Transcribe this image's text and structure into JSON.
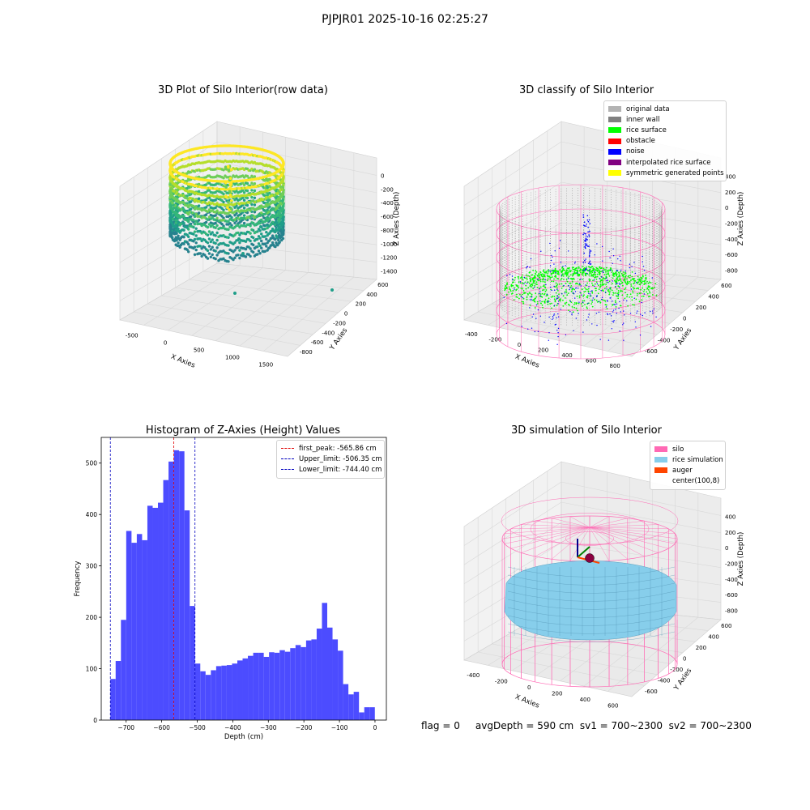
{
  "figure": {
    "suptitle": "PJPJR01 2025-10-16 02:25:27",
    "footer": "flag = 0     avgDepth = 590 cm  sv1 = 700~2300  sv2 = 700~2300"
  },
  "colors": {
    "histogram_bar": "#4c4cff",
    "first_peak_line": "#e00000",
    "limit_line": "#0000c0",
    "silo_wire": "#ff69b4",
    "rice_simulation": "#87ceeb",
    "auger": "#ff4500"
  },
  "chart_data": [
    {
      "type": "scatter",
      "title": "3D Plot of Silo Interior(row data)",
      "xlabel": "X Axies",
      "ylabel": "Y Axies",
      "zlabel": "Z Axies (Depth)",
      "x_ticks": [
        "-500",
        "0",
        "500",
        "1000",
        "1500"
      ],
      "y_ticks": [
        "600",
        "400",
        "200",
        "0",
        "-200",
        "-400",
        "-600",
        "-800"
      ],
      "z_ticks": [
        "0",
        "-200",
        "-400",
        "-600",
        "-800",
        "-1000",
        "-1200",
        "-1400"
      ],
      "colormap": [
        "#fde725",
        "#b5de2b",
        "#6ece58",
        "#35b779",
        "#1f9e89",
        "#26828e",
        "#31688e"
      ]
    },
    {
      "type": "scatter",
      "title": "3D classify of Silo Interior",
      "xlabel": "X Axies",
      "ylabel": "Y Axies",
      "zlabel": "Z Axies (Depth)",
      "x_ticks": [
        "-400",
        "-200",
        "0",
        "200",
        "400",
        "600",
        "800"
      ],
      "y_ticks": [
        "600",
        "400",
        "200",
        "0",
        "-200",
        "-400",
        "-600"
      ],
      "z_ticks": [
        "400",
        "200",
        "0",
        "-200",
        "-400",
        "-600",
        "-800"
      ],
      "legend": [
        {
          "name": "original data",
          "color": "#b3b3b3"
        },
        {
          "name": "inner wall",
          "color": "#808080"
        },
        {
          "name": "rice surface",
          "color": "#00ff00"
        },
        {
          "name": "obstacle",
          "color": "#ff0000"
        },
        {
          "name": "noise",
          "color": "#0000ff"
        },
        {
          "name": "interpolated rice surface",
          "color": "#800080"
        },
        {
          "name": "symmetric generated points",
          "color": "#ffff00"
        }
      ]
    },
    {
      "type": "bar",
      "title": "Histogram of Z-Axies (Height) Values",
      "xlabel": "Depth (cm)",
      "ylabel": "Frequency",
      "xlim": [
        -770,
        32
      ],
      "ylim": [
        0,
        550
      ],
      "x_ticks": [
        -700,
        -600,
        -500,
        -400,
        -300,
        -200,
        -100,
        0
      ],
      "y_ticks": [
        0,
        100,
        200,
        300,
        400,
        500
      ],
      "bin_start": -744.4,
      "bin_width": 14.88,
      "values": [
        80,
        115,
        195,
        368,
        345,
        362,
        350,
        417,
        413,
        423,
        467,
        503,
        525,
        523,
        408,
        222,
        110,
        95,
        88,
        97,
        105,
        106,
        107,
        110,
        116,
        120,
        125,
        131,
        131,
        123,
        132,
        131,
        136,
        133,
        140,
        146,
        142,
        155,
        157,
        178,
        228,
        180,
        157,
        135,
        70,
        50,
        55,
        15,
        25,
        25
      ],
      "legend": [
        {
          "name": "first_peak: -565.86 cm",
          "value": -565.86,
          "color": "#e00000"
        },
        {
          "name": "Upper_limit: -506.35 cm",
          "value": -506.35,
          "color": "#0000c0"
        },
        {
          "name": "Lower_limit: -744.40 cm",
          "value": -744.4,
          "color": "#0000c0"
        }
      ]
    },
    {
      "type": "area",
      "title": "3D simulation of Silo Interior",
      "xlabel": "X Axies",
      "ylabel": "Y Axies",
      "zlabel": "Z Axies (Depth)",
      "x_ticks": [
        "-400",
        "-200",
        "0",
        "200",
        "400",
        "600"
      ],
      "y_ticks": [
        "600",
        "400",
        "200",
        "0",
        "-200",
        "-400",
        "-600"
      ],
      "z_ticks": [
        "400",
        "200",
        "0",
        "-200",
        "-400",
        "-600",
        "-800"
      ],
      "legend": [
        {
          "name": "silo",
          "color": "#ff69b4"
        },
        {
          "name": "rice simulation",
          "color": "#87ceeb"
        },
        {
          "name": "auger",
          "color": "#ff4500"
        },
        {
          "name": "center(100,8)",
          "color": "transparent"
        }
      ]
    }
  ]
}
